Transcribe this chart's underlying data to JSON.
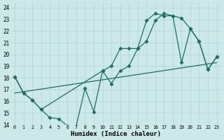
{
  "xlabel": "Humidex (Indice chaleur)",
  "bg_color": "#cce8e8",
  "grid_color": "#aad4d4",
  "line_color": "#1a7060",
  "xlim": [
    -0.5,
    23.5
  ],
  "ylim": [
    14,
    24.4
  ],
  "line1_x": [
    0,
    1,
    2,
    3,
    4,
    5,
    6,
    7,
    8,
    9,
    10,
    11,
    12,
    13,
    14,
    15,
    16,
    17,
    18,
    19,
    20,
    21,
    22,
    23
  ],
  "line1_y": [
    18.1,
    16.7,
    16.1,
    15.3,
    14.6,
    14.5,
    13.9,
    13.9,
    17.1,
    15.1,
    18.6,
    17.5,
    18.6,
    19.0,
    20.5,
    21.1,
    22.9,
    23.5,
    23.3,
    23.1,
    22.2,
    21.1,
    18.7,
    19.8
  ],
  "line2_x": [
    0,
    1,
    2,
    3,
    10,
    11,
    12,
    13,
    14,
    15,
    16,
    17,
    18,
    19,
    20,
    21,
    22,
    23
  ],
  "line2_y": [
    18.1,
    16.7,
    16.1,
    15.3,
    18.6,
    19.0,
    20.5,
    20.5,
    20.5,
    22.9,
    23.5,
    23.3,
    23.3,
    19.3,
    22.2,
    21.1,
    18.7,
    19.8
  ],
  "trend_x": [
    0,
    23
  ],
  "trend_y": [
    16.7,
    19.3
  ],
  "markersize": 2.8,
  "linewidth": 0.9
}
